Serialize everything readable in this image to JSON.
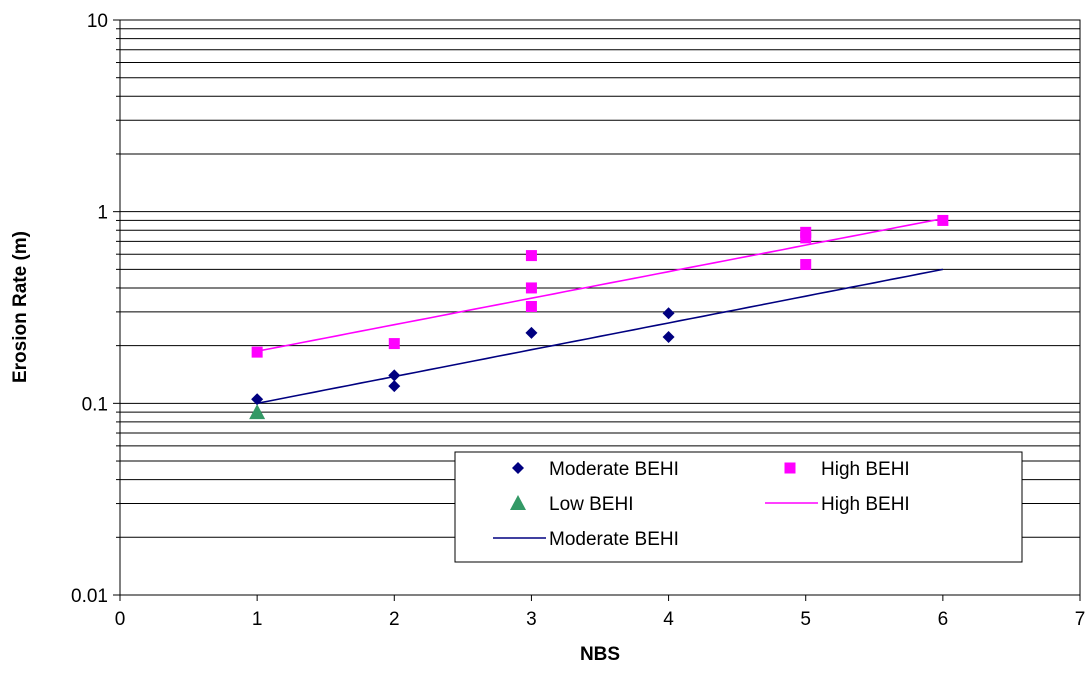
{
  "chart_data": {
    "type": "scatter",
    "title": "",
    "xlabel": "NBS",
    "ylabel": "Erosion Rate (m)",
    "xlim": [
      0,
      7
    ],
    "ylim": [
      0.01,
      10
    ],
    "yscale": "log",
    "grid": "horizontal major and minor lines",
    "x_ticks": [
      "0",
      "1",
      "2",
      "3",
      "4",
      "5",
      "6",
      "7"
    ],
    "y_ticks": [
      "0.01",
      "0.1",
      "1",
      "10"
    ],
    "legend_position": "lower-right",
    "series": [
      {
        "name": "Moderate BEHI",
        "kind": "points",
        "marker": "diamond",
        "color": "#000080",
        "points": [
          [
            1,
            0.105
          ],
          [
            2,
            0.14
          ],
          [
            2,
            0.123
          ],
          [
            3,
            0.233
          ],
          [
            4,
            0.295
          ],
          [
            4,
            0.222
          ]
        ]
      },
      {
        "name": "High BEHI",
        "kind": "points",
        "marker": "square",
        "color": "#FF00FF",
        "points": [
          [
            1,
            0.185
          ],
          [
            2,
            0.205
          ],
          [
            3,
            0.59
          ],
          [
            3,
            0.4
          ],
          [
            3,
            0.32
          ],
          [
            5,
            0.78
          ],
          [
            5,
            0.73
          ],
          [
            5,
            0.53
          ],
          [
            6,
            0.9
          ]
        ]
      },
      {
        "name": "Low BEHI",
        "kind": "points",
        "marker": "triangle",
        "color": "#339966",
        "points": [
          [
            1,
            0.09
          ]
        ]
      },
      {
        "name": "High BEHI",
        "kind": "line",
        "color": "#FF00FF",
        "points": [
          [
            1,
            0.187
          ],
          [
            6,
            0.92
          ]
        ]
      },
      {
        "name": "Moderate BEHI",
        "kind": "line",
        "color": "#000080",
        "points": [
          [
            1,
            0.1
          ],
          [
            6,
            0.5
          ]
        ]
      }
    ]
  }
}
